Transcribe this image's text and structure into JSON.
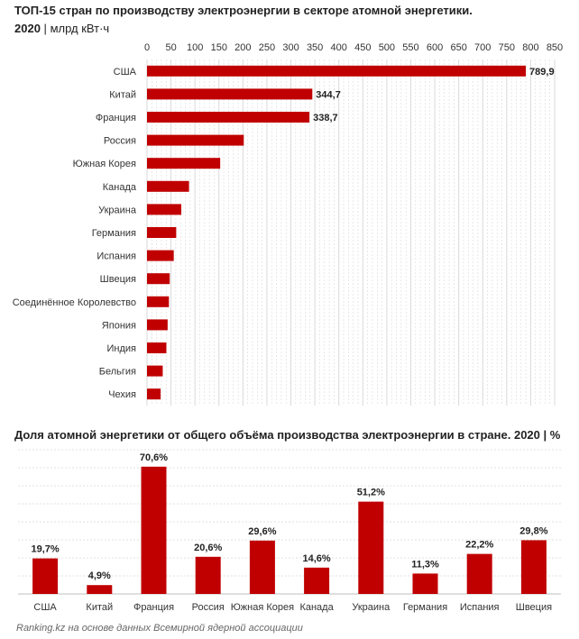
{
  "chart1": {
    "title": "ТОП-15 стран по производству электроэнергии в секторе атомной энергетики.",
    "year": "2020",
    "separator": "|",
    "unit": "млрд кВт·ч"
  },
  "chart2": {
    "title": "Доля атомной энергетики от общего объёма производства электроэнергии в стране. 2020 | %"
  },
  "source": "Ranking.kz на основе данных Всемирной ядерной ассоциации",
  "colors": {
    "bar": "#c00000",
    "grid": "#d9d9d9"
  },
  "chart_data": [
    {
      "type": "bar",
      "orientation": "horizontal",
      "categories": [
        "США",
        "Китай",
        "Франция",
        "Россия",
        "Южная Корея",
        "Канада",
        "Украина",
        "Германия",
        "Испания",
        "Швеция",
        "Соединённое Королевство",
        "Япония",
        "Индия",
        "Бельгия",
        "Чехия"
      ],
      "values": [
        789.9,
        344.7,
        338.7,
        201.8,
        152.6,
        87.6,
        71.5,
        60.9,
        55.8,
        47.4,
        45.7,
        43.0,
        40.4,
        32.8,
        28.4
      ],
      "data_labels": [
        "789,9",
        "344,7",
        "338,7",
        "",
        "",
        "",
        "",
        "",
        "",
        "",
        "",
        "",
        "",
        "",
        ""
      ],
      "xlim": [
        0,
        850
      ],
      "xticks": [
        0,
        50,
        100,
        150,
        200,
        250,
        300,
        350,
        400,
        450,
        500,
        550,
        600,
        650,
        700,
        750,
        800,
        850
      ],
      "grid": true
    },
    {
      "type": "bar",
      "orientation": "vertical",
      "categories": [
        "США",
        "Китай",
        "Франция",
        "Россия",
        "Южная Корея",
        "Канада",
        "Украина",
        "Германия",
        "Испания",
        "Швеция"
      ],
      "values": [
        19.7,
        4.9,
        70.6,
        20.6,
        29.6,
        14.6,
        51.2,
        11.3,
        22.2,
        29.8
      ],
      "data_labels": [
        "19,7%",
        "4,9%",
        "70,6%",
        "20,6%",
        "29,6%",
        "14,6%",
        "51,2%",
        "11,3%",
        "22,2%",
        "29,8%"
      ],
      "ylim": [
        0,
        80
      ],
      "grid": true
    }
  ]
}
